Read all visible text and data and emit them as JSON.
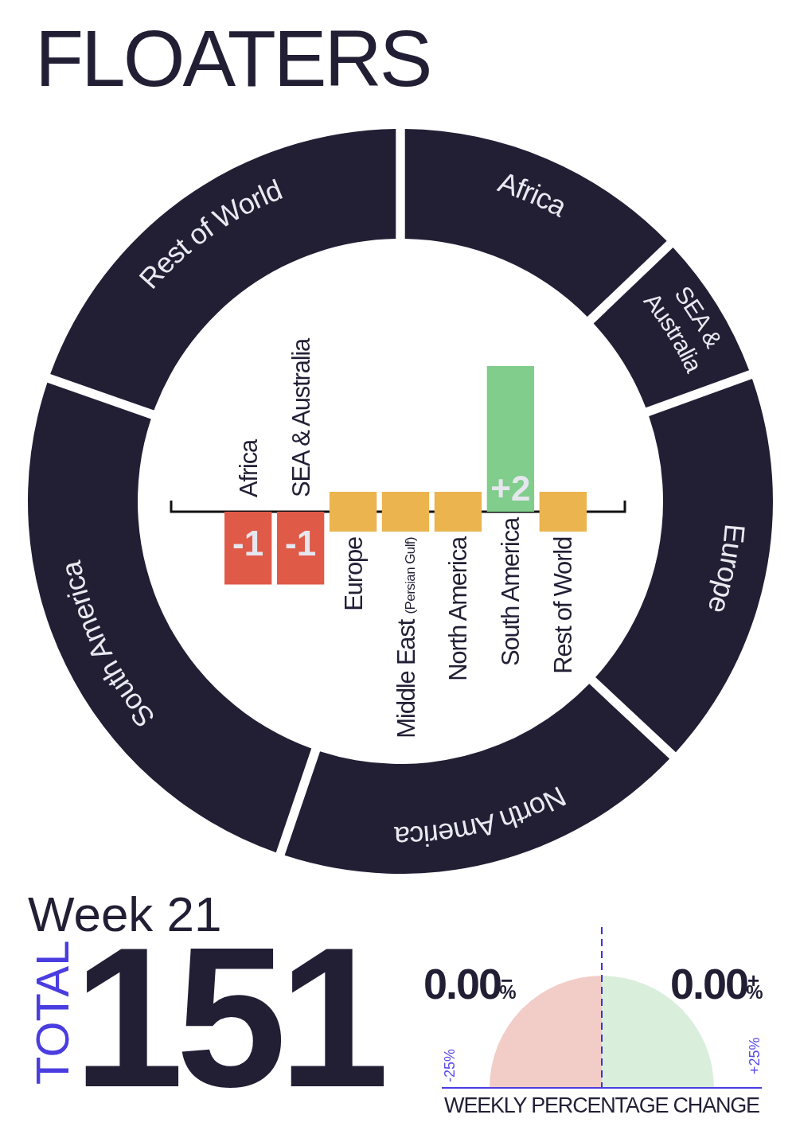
{
  "chart_data": [
    {
      "type": "donut",
      "title": "FLOATERS",
      "categories": [
        "Africa",
        "SEA & Australia",
        "Europe",
        "North America",
        "South America",
        "Rest of World"
      ],
      "values": [
        12.8,
        6.4,
        17.5,
        18.3,
        25.3,
        19.7
      ],
      "colors": [
        "#221f35",
        "#221f35",
        "#221f35",
        "#221f35",
        "#221f35",
        "#221f35"
      ]
    },
    {
      "type": "bar",
      "categories": [
        "Africa",
        "SEA & Australia",
        "Europe",
        "Middle East (Persian Gulf)",
        "North America",
        "South America",
        "Rest of World"
      ],
      "values": [
        -1,
        -1,
        0,
        0,
        0,
        2,
        0
      ],
      "colors": [
        "#e05a48",
        "#e05a48",
        "#ebb44e",
        "#ebb44e",
        "#ebb44e",
        "#80cd8c",
        "#ebb44e"
      ],
      "value_labels": [
        "-1",
        "-1",
        null,
        null,
        null,
        "+2",
        null
      ]
    },
    {
      "type": "other",
      "title": "Week 21",
      "annotations": [
        "TOTAL",
        "151"
      ]
    },
    {
      "type": "other",
      "title": "WEEKLY PERCENTAGE CHANGE",
      "annotations": [
        "0.00$^{−}$%",
        "0.00$^{+}$%",
        "-25%",
        "+25%"
      ]
    }
  ]
}
